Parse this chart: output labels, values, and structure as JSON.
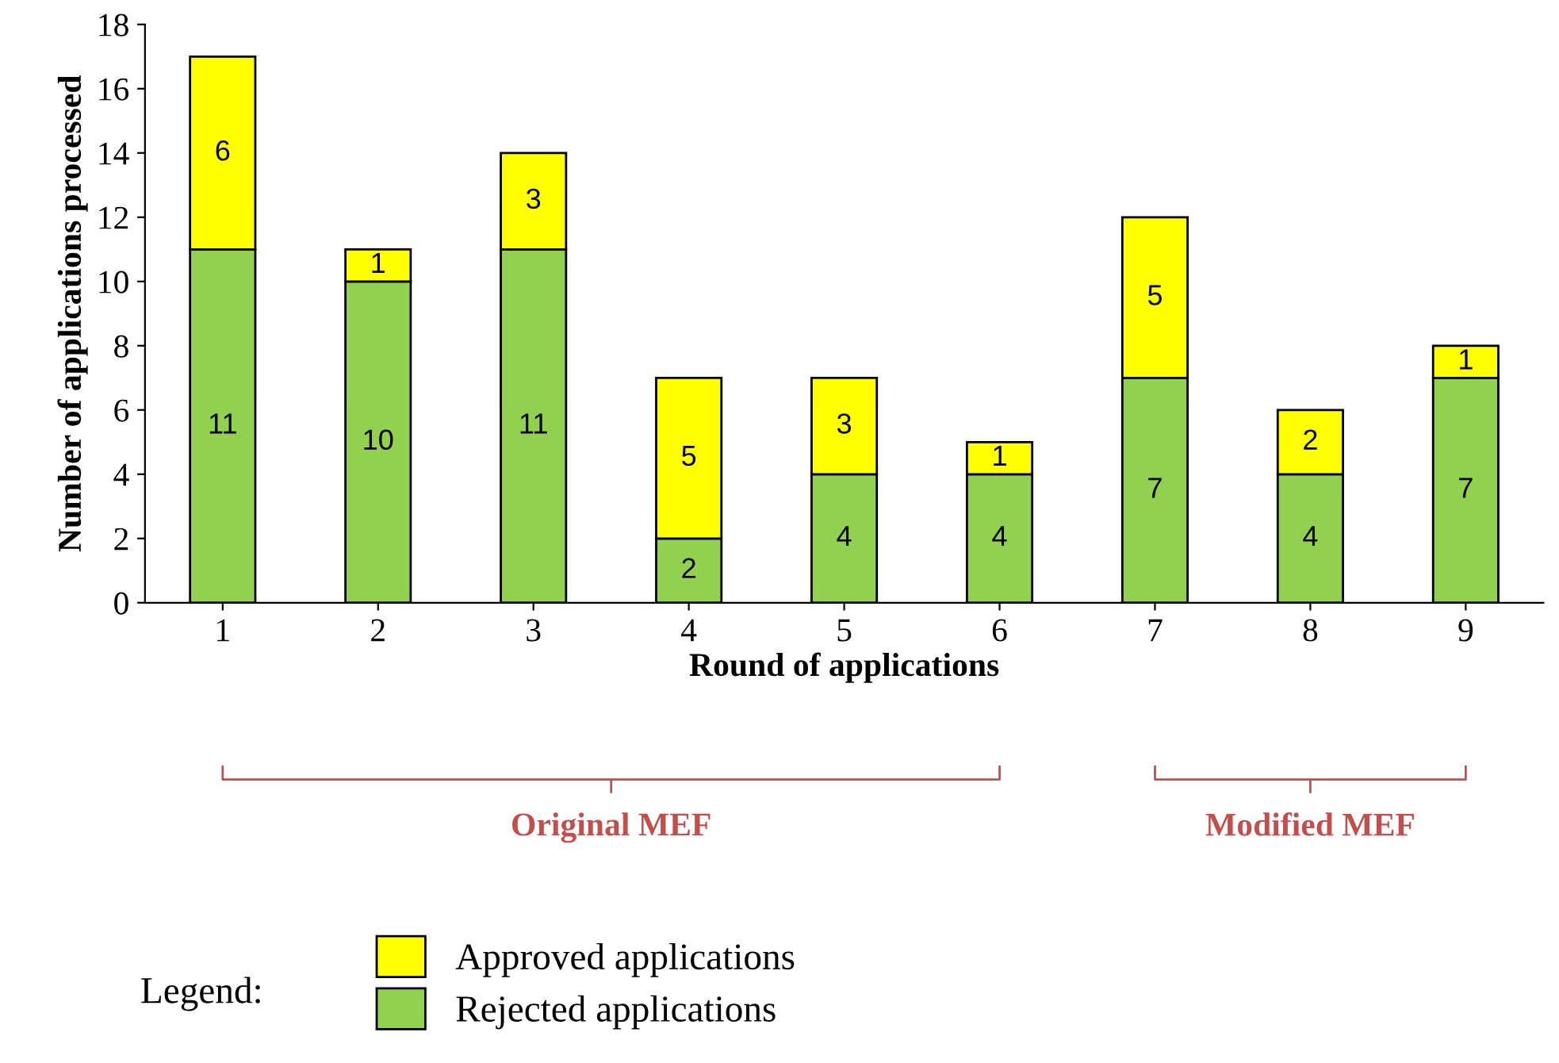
{
  "chart_data": {
    "type": "bar",
    "stacked": true,
    "xlabel": "Round of applications",
    "ylabel": "Number of applications processed",
    "categories": [
      "1",
      "2",
      "3",
      "4",
      "5",
      "6",
      "7",
      "8",
      "9"
    ],
    "series": [
      {
        "name": "Rejected applications",
        "color": "#92d050",
        "values": [
          11,
          10,
          11,
          2,
          4,
          4,
          7,
          4,
          7
        ]
      },
      {
        "name": "Approved applications",
        "color": "#ffff00",
        "values": [
          6,
          1,
          3,
          5,
          3,
          1,
          5,
          2,
          1
        ]
      }
    ],
    "ylim": [
      0,
      18
    ],
    "yticks": [
      0,
      2,
      4,
      6,
      8,
      10,
      12,
      14,
      16,
      18
    ],
    "data_labels": true,
    "grid": false,
    "legend": "bottom",
    "legend_title": "Legend:",
    "annotations": [
      "Original MEF",
      "Modified MEF"
    ]
  }
}
